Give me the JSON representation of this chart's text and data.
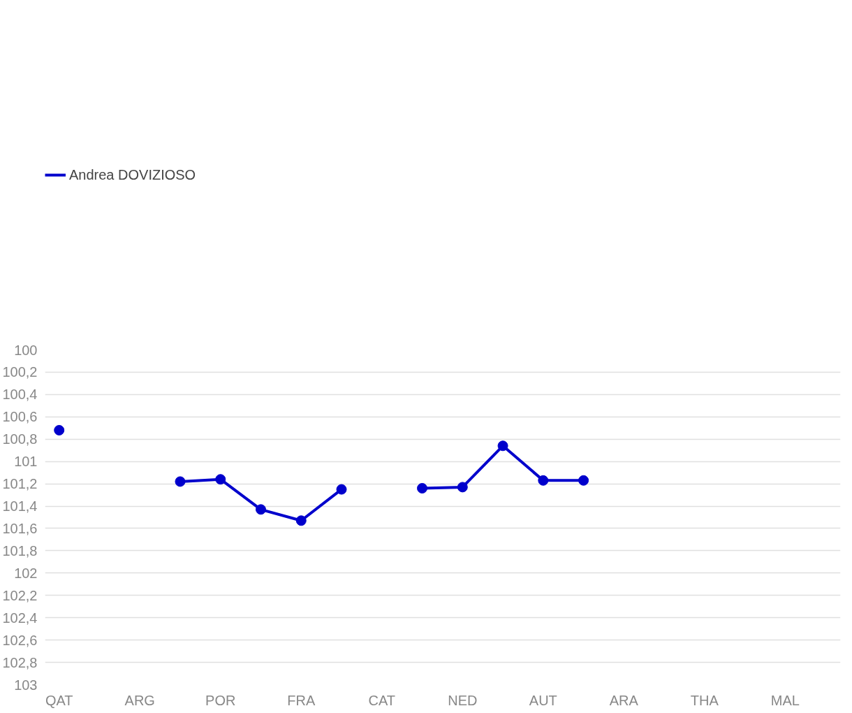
{
  "chart_data": {
    "type": "line",
    "categories": [
      "QAT",
      null,
      "ARG",
      null,
      "POR",
      null,
      "FRA",
      null,
      "CAT",
      null,
      "NED",
      null,
      "AUT",
      null,
      "ARA",
      null,
      "THA",
      null,
      "MAL",
      null
    ],
    "series": [
      {
        "name": "Andrea DOVIZIOSO",
        "color": "#0000cc",
        "values": [
          100.72,
          null,
          null,
          101.18,
          101.16,
          101.43,
          101.53,
          101.25,
          null,
          101.24,
          101.23,
          100.86,
          101.17,
          101.17,
          null,
          null,
          null,
          null,
          null,
          null
        ]
      }
    ],
    "ylim": [
      103,
      100
    ],
    "yticks": [
      100,
      {
        "value": 100.2,
        "label": "100,2"
      },
      {
        "value": 100.4,
        "label": "100,4"
      },
      {
        "value": 100.6,
        "label": "100,6"
      },
      {
        "value": 100.8,
        "label": "100,8"
      },
      101,
      {
        "value": 101.2,
        "label": "101,2"
      },
      {
        "value": 101.4,
        "label": "101,4"
      },
      {
        "value": 101.6,
        "label": "101,6"
      },
      {
        "value": 101.8,
        "label": "101,8"
      },
      102,
      {
        "value": 102.2,
        "label": "102,2"
      },
      {
        "value": 102.4,
        "label": "102,4"
      },
      {
        "value": 102.6,
        "label": "102,6"
      },
      {
        "value": 102.8,
        "label": "102,8"
      },
      103
    ],
    "grid": "y",
    "legend": "top left",
    "marker": "circle",
    "line_style": "solid"
  }
}
